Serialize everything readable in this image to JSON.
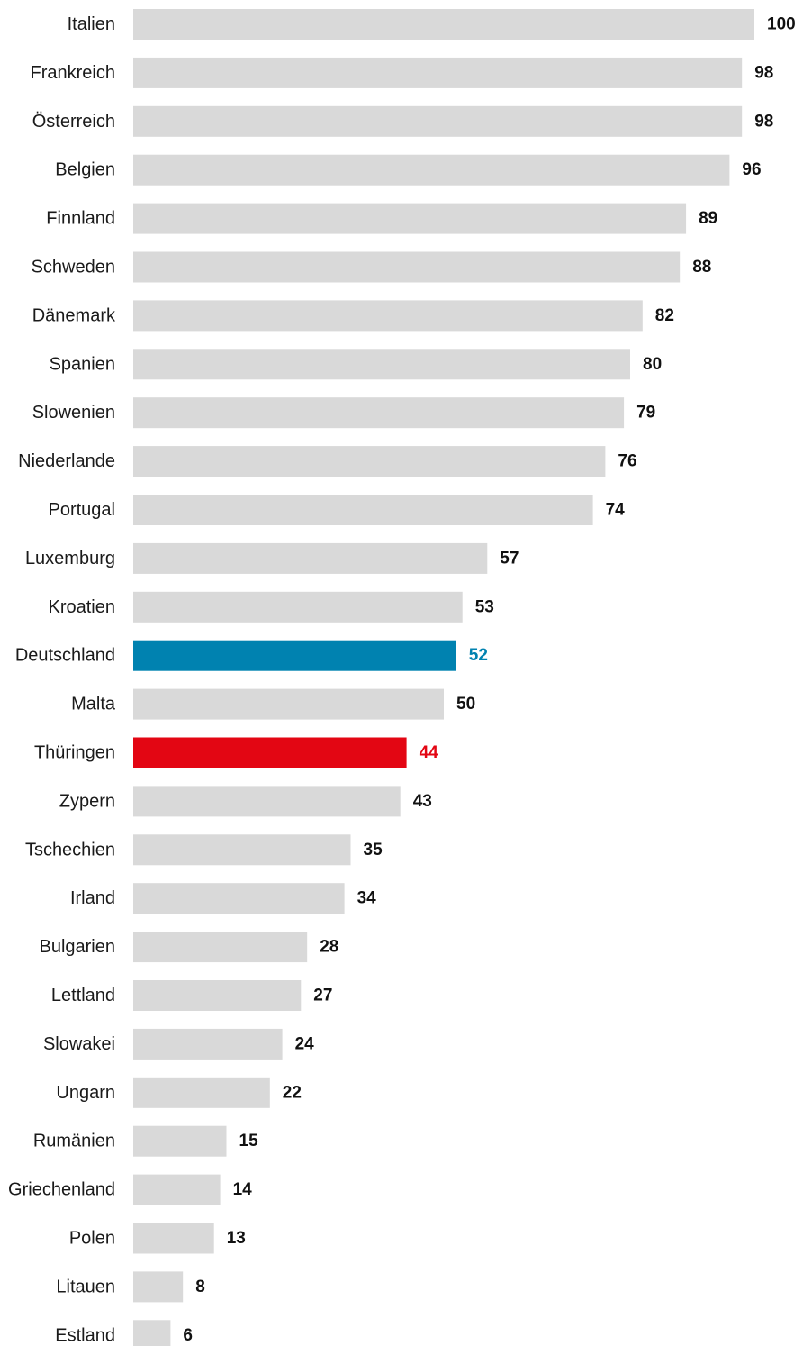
{
  "colors": {
    "default_bar": "#d9d9d9",
    "default_label": "#111111",
    "highlight_germany": "#0082b0",
    "highlight_thuringia": "#e30613"
  },
  "chart_data": {
    "type": "bar",
    "orientation": "horizontal",
    "title": "",
    "xlabel": "",
    "ylabel": "",
    "xlim": [
      0,
      100
    ],
    "grid": false,
    "categories": [
      "Italien",
      "Frankreich",
      "Österreich",
      "Belgien",
      "Finnland",
      "Schweden",
      "Dänemark",
      "Spanien",
      "Slowenien",
      "Niederlande",
      "Portugal",
      "Luxemburg",
      "Kroatien",
      "Deutschland",
      "Malta",
      "Thüringen",
      "Zypern",
      "Tschechien",
      "Irland",
      "Bulgarien",
      "Lettland",
      "Slowakei",
      "Ungarn",
      "Rumänien",
      "Griechenland",
      "Polen",
      "Litauen",
      "Estland"
    ],
    "values": [
      100,
      98,
      98,
      96,
      89,
      88,
      82,
      80,
      79,
      76,
      74,
      57,
      53,
      52,
      50,
      44,
      43,
      35,
      34,
      28,
      27,
      24,
      22,
      15,
      14,
      13,
      8,
      6
    ],
    "highlights": {
      "Deutschland": "highlight_germany",
      "Thüringen": "highlight_thuringia"
    }
  }
}
